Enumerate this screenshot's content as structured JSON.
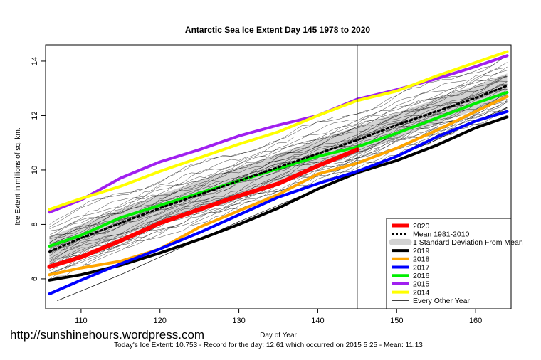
{
  "chart_data": {
    "type": "line",
    "title": "Antarctic Sea Ice Extent Day 145 1978 to 2020",
    "xlabel": "Day of Year",
    "ylabel": "Ice Extent in millions of sq. km.",
    "xlim": [
      105.5,
      164.5
    ],
    "ylim": [
      4.9,
      14.6
    ],
    "x_ticks": [
      110,
      120,
      130,
      140,
      150,
      160
    ],
    "y_ticks": [
      6,
      8,
      10,
      12,
      14
    ],
    "current_day_marker": 145,
    "watermark": "http://sunshinehours.wordpress.com",
    "footer": "Today's Ice Extent: 10.753  - Record for the day: 12.61 which occurred on 2015 5 25  - Mean: 11.13",
    "legend_position": "bottom-right",
    "grid": false,
    "std_band": {
      "name": "1 Standard Deviation From Mean",
      "color": "#d3d3d3",
      "x": [
        106,
        110,
        115,
        120,
        125,
        130,
        135,
        140,
        145,
        150,
        155,
        160,
        164
      ],
      "lower": [
        6.55,
        7.0,
        7.55,
        8.1,
        8.6,
        9.1,
        9.6,
        10.1,
        10.6,
        11.15,
        11.7,
        12.2,
        12.65
      ],
      "upper": [
        7.55,
        8.0,
        8.55,
        9.1,
        9.6,
        10.1,
        10.6,
        11.1,
        11.6,
        12.1,
        12.6,
        13.1,
        13.55
      ]
    },
    "series": [
      {
        "name": "Every Other Year",
        "color": "#000000",
        "width": 0.7,
        "dash": "",
        "x": [
          107,
          110,
          115,
          120,
          125,
          130,
          135,
          140,
          145,
          150,
          155,
          160,
          164
        ],
        "y": [
          5.2,
          5.55,
          6.15,
          6.8,
          7.45,
          8.1,
          8.7,
          9.3,
          9.9,
          10.5,
          11.1,
          11.8,
          12.3
        ]
      },
      {
        "name": "2019",
        "color": "#000000",
        "width": 4,
        "dash": "",
        "x": [
          106,
          110,
          115,
          120,
          125,
          130,
          135,
          140,
          145,
          150,
          155,
          160,
          164
        ],
        "y": [
          5.95,
          6.15,
          6.5,
          6.95,
          7.45,
          8.0,
          8.6,
          9.3,
          9.9,
          10.35,
          10.9,
          11.55,
          11.95
        ]
      },
      {
        "name": "2018",
        "color": "#ffa500",
        "width": 4,
        "dash": "",
        "x": [
          106,
          110,
          115,
          120,
          125,
          130,
          135,
          140,
          145,
          150,
          155,
          160,
          164
        ],
        "y": [
          6.15,
          6.4,
          6.65,
          7.1,
          7.9,
          8.5,
          9.1,
          9.85,
          10.25,
          10.8,
          11.45,
          12.15,
          12.7
        ]
      },
      {
        "name": "2017",
        "color": "#0000ff",
        "width": 4,
        "dash": "",
        "x": [
          106,
          110,
          115,
          120,
          125,
          130,
          135,
          140,
          145,
          150,
          155,
          160,
          164
        ],
        "y": [
          5.45,
          5.95,
          6.55,
          7.1,
          7.7,
          8.35,
          9.0,
          9.5,
          9.95,
          10.5,
          11.2,
          11.8,
          12.15
        ]
      },
      {
        "name": "2016",
        "color": "#00ee00",
        "width": 4,
        "dash": "",
        "x": [
          106,
          110,
          115,
          120,
          125,
          130,
          135,
          140,
          145,
          150,
          155,
          160,
          164
        ],
        "y": [
          7.2,
          7.6,
          8.25,
          8.7,
          9.15,
          9.6,
          10.05,
          10.5,
          10.85,
          11.35,
          11.9,
          12.45,
          12.85
        ]
      },
      {
        "name": "2015",
        "color": "#a020f0",
        "width": 4,
        "dash": "",
        "x": [
          106,
          110,
          115,
          120,
          125,
          130,
          135,
          140,
          145,
          150,
          155,
          160,
          164
        ],
        "y": [
          8.45,
          8.9,
          9.7,
          10.3,
          10.75,
          11.25,
          11.65,
          12.0,
          12.6,
          12.95,
          13.35,
          13.8,
          14.2
        ]
      },
      {
        "name": "2014",
        "color": "#ffff00",
        "width": 4,
        "dash": "",
        "x": [
          106,
          110,
          115,
          120,
          125,
          130,
          135,
          140,
          145,
          150,
          155,
          160,
          164
        ],
        "y": [
          8.55,
          8.95,
          9.4,
          9.95,
          10.45,
          10.95,
          11.4,
          12.0,
          12.55,
          12.9,
          13.45,
          13.95,
          14.35
        ]
      },
      {
        "name": "Mean 1981-2010",
        "color": "#000000",
        "width": 3,
        "dash": "3,4",
        "x": [
          106,
          110,
          115,
          120,
          125,
          130,
          135,
          140,
          145,
          150,
          155,
          160,
          164
        ],
        "y": [
          7.0,
          7.5,
          8.05,
          8.6,
          9.1,
          9.6,
          10.1,
          10.6,
          11.1,
          11.65,
          12.15,
          12.65,
          13.1
        ]
      },
      {
        "name": "2020",
        "color": "#ff0000",
        "width": 6,
        "dash": "",
        "x": [
          106,
          110,
          115,
          120,
          125,
          130,
          135,
          140,
          145
        ],
        "y": [
          6.45,
          6.8,
          7.4,
          8.05,
          8.55,
          9.05,
          9.5,
          10.15,
          10.75
        ]
      }
    ],
    "legend": [
      {
        "label": "2020",
        "color": "#ff0000",
        "style": "line",
        "width": 5
      },
      {
        "label": "Mean 1981-2010",
        "color": "#000000",
        "style": "dash",
        "width": 3
      },
      {
        "label": "1 Standard Deviation From Mean",
        "color": "#d3d3d3",
        "style": "band",
        "width": 8
      },
      {
        "label": "2019",
        "color": "#000000",
        "style": "line",
        "width": 4
      },
      {
        "label": "2018",
        "color": "#ffa500",
        "style": "line",
        "width": 4
      },
      {
        "label": "2017",
        "color": "#0000ff",
        "style": "line",
        "width": 4
      },
      {
        "label": "2016",
        "color": "#00ee00",
        "style": "line",
        "width": 4
      },
      {
        "label": "2015",
        "color": "#a020f0",
        "style": "line",
        "width": 4
      },
      {
        "label": "2014",
        "color": "#ffff00",
        "style": "line",
        "width": 4
      },
      {
        "label": "Every Other Year",
        "color": "#000000",
        "style": "line",
        "width": 0.8
      }
    ]
  }
}
